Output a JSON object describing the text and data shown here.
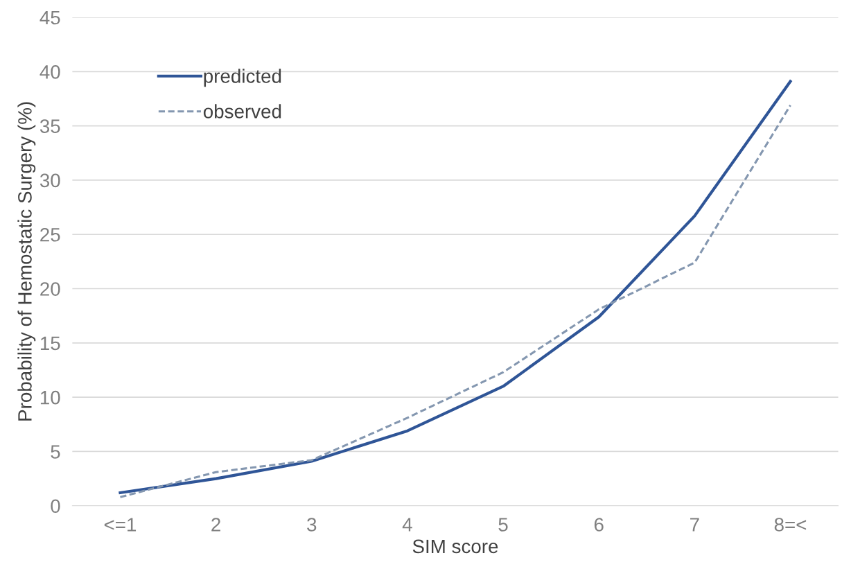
{
  "chart_data": {
    "type": "line",
    "xlabel": "SIM score",
    "ylabel": "Probability of Hemostatic Surgery (%)",
    "categories": [
      "<=1",
      "2",
      "3",
      "4",
      "5",
      "6",
      "7",
      "8=<"
    ],
    "series": [
      {
        "name": "predicted",
        "color": "#2f5597",
        "line_style": "solid",
        "values": [
          1.2,
          2.5,
          4.1,
          6.9,
          11.0,
          17.4,
          26.7,
          39.1
        ]
      },
      {
        "name": "observed",
        "color": "#8497b0",
        "line_style": "dashed",
        "values": [
          0.8,
          3.1,
          4.2,
          8.1,
          12.3,
          18.1,
          22.4,
          36.9
        ]
      }
    ],
    "ylim": [
      0,
      45
    ],
    "yticks": [
      0,
      5,
      10,
      15,
      20,
      25,
      30,
      35,
      40,
      45
    ],
    "grid": "y",
    "legend": "top left",
    "marker": "none"
  }
}
